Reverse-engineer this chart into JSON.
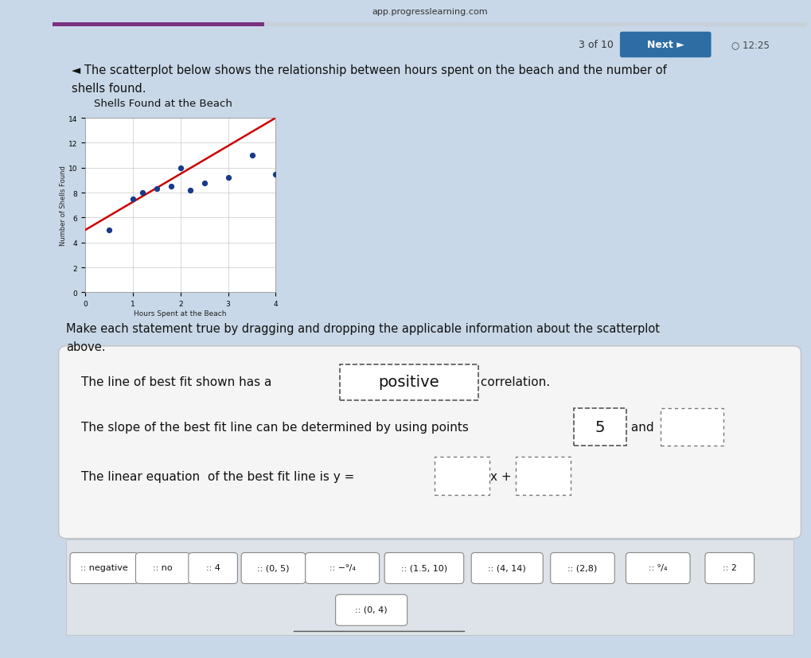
{
  "outer_bg": "#c8d8e8",
  "white_bg": "#ffffff",
  "content_bg": "#f0f4f8",
  "url_text": "app.progresslearning.com",
  "progress_bar_color": "#7b3080",
  "progress_bar_bg": "#c8d0d8",
  "nav_text": "3 of 10",
  "next_btn_color": "#2e6da4",
  "next_btn_text": "Next ►",
  "time_text": "○ 12:25",
  "intro_text1": "◄ The scatterplot below shows the relationship between hours spent on the beach and the number of",
  "intro_text2": "shells found.",
  "chart_title": "Shells Found at the Beach",
  "xlabel": "Hours Spent at the Beach",
  "ylabel": "Number of Shells Found",
  "scatter_x": [
    0.5,
    1.0,
    1.2,
    1.5,
    1.8,
    2.0,
    2.2,
    2.5,
    3.0,
    3.5,
    4.0
  ],
  "scatter_y": [
    5,
    7.5,
    8,
    8.3,
    8.5,
    10,
    8.2,
    8.8,
    9.2,
    11,
    9.5
  ],
  "line_x": [
    0,
    4
  ],
  "line_y": [
    5,
    14
  ],
  "scatter_color": "#1a3a8a",
  "line_color": "#cc0000",
  "xlim": [
    0,
    4
  ],
  "ylim": [
    0,
    14
  ],
  "xticks": [
    0,
    1,
    2,
    3,
    4
  ],
  "yticks": [
    0,
    2,
    4,
    6,
    8,
    10,
    12,
    14
  ],
  "make_text": "Make each statement true by dragging and dropping the applicable information about the scatterplot",
  "above_text": "above.",
  "stmt1_a": "The line of best fit shown has a ",
  "stmt1_filled": "positive",
  "stmt1_b": " correlation.",
  "stmt2_a": "The slope of the best fit line can be determined by using points ",
  "stmt2_filled1": "5",
  "stmt2_and": " and",
  "stmt3_a": "The linear equation  of the best fit line is y = ",
  "stmt3_mid": "x + ",
  "tokens_row1": [
    ":: negative",
    ":: no",
    ":: 4",
    ":: (0, 5)",
    ":: −⁹/₄",
    ":: (1.5, 10)",
    ":: (4, 14)",
    ":: (2,8)",
    ":: ⁹/₄",
    ":: 2"
  ],
  "token_extra": ":: (0, 4)",
  "stmt_box_bg": "#f0f0f0",
  "token_area_bg": "#dde3e8"
}
